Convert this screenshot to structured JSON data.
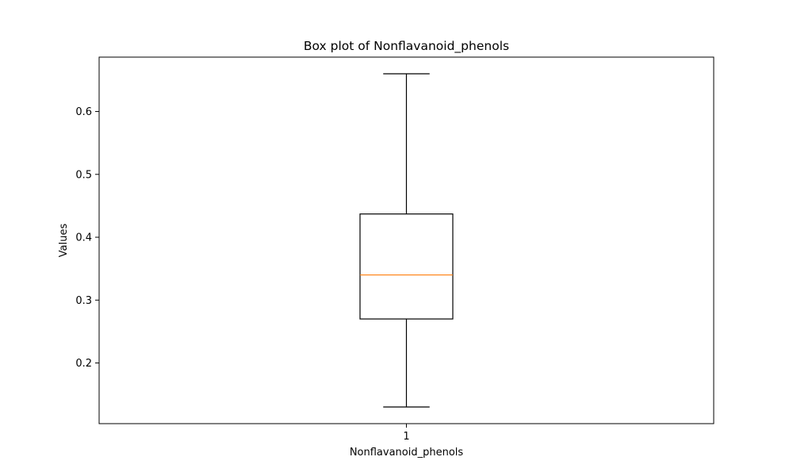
{
  "chart_data": {
    "type": "box",
    "title": "Box plot of Nonflavanoid_phenols",
    "xlabel": "Nonflavanoid_phenols",
    "ylabel": "Values",
    "categories": [
      "1"
    ],
    "series": [
      {
        "whisker_low": 0.13,
        "q1": 0.27,
        "median": 0.34,
        "q3": 0.437,
        "whisker_high": 0.66
      }
    ],
    "y_ticks": [
      0.2,
      0.3,
      0.4,
      0.5,
      0.6
    ],
    "y_tick_labels": [
      "0.2",
      "0.3",
      "0.4",
      "0.5",
      "0.6"
    ],
    "ylim": [
      0.1035,
      0.6865
    ],
    "grid": false,
    "colors": {
      "median": "#ff7f0e",
      "box": "#000000",
      "whisker": "#000000",
      "axes": "#000000"
    }
  }
}
